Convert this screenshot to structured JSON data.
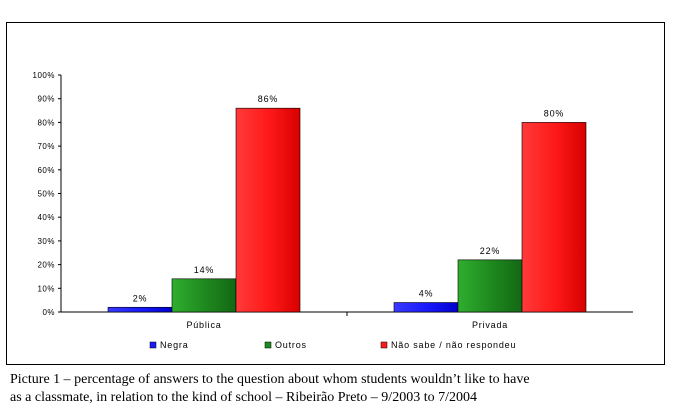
{
  "chart_data": {
    "type": "bar",
    "categories": [
      "Pública",
      "Privada"
    ],
    "series": [
      {
        "name": "Negra",
        "values": [
          2,
          4
        ],
        "labels": [
          "2%",
          "4%"
        ],
        "color": "#1a1aff"
      },
      {
        "name": "Outros",
        "values": [
          14,
          22
        ],
        "labels": [
          "14%",
          "22%"
        ],
        "color": "#1f8a1f"
      },
      {
        "name": "Não sabe / não respondeu",
        "values": [
          86,
          80
        ],
        "labels": [
          "86%",
          "80%"
        ],
        "color": "#ff1a1a"
      }
    ],
    "y_ticks": [
      "0%",
      "10%",
      "20%",
      "30%",
      "40%",
      "50%",
      "60%",
      "70%",
      "80%",
      "90%",
      "100%"
    ],
    "ylim": [
      0,
      100
    ],
    "grid": false,
    "legend_position": "bottom"
  },
  "caption": {
    "line1": "Picture 1 – percentage of answers to the question about whom students wouldn’t like to have",
    "line2": "as a classmate, in relation to the kind of school – Ribeirão Preto – 9/2003 to 7/2004"
  }
}
